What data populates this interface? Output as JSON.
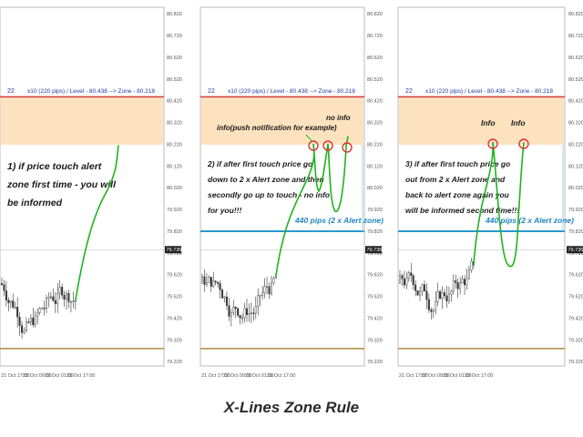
{
  "caption": "X-Lines Zone Rule",
  "colors": {
    "zone_fill": "#fde2c0",
    "level_line": "#d63a3a",
    "alert_line": "#2a98d0",
    "bottom_line": "#b08a3a",
    "annotation_green": "#1db51d",
    "annotation_text": "#1a1a1a",
    "alert_text": "#1f86c4",
    "header_text": "#2040a0",
    "circle_red": "#e23030",
    "candle": "#333333",
    "axis_text": "#555555"
  },
  "price_axis_labels": [
    "80.820",
    "80.720",
    "80.620",
    "80.520",
    "80.420",
    "80.320",
    "80.220",
    "80.120",
    "80.020",
    "79.920",
    "79.820",
    "79.720",
    "79.620",
    "79.520",
    "79.420",
    "79.320",
    "79.220"
  ],
  "current_price_tag": "79.735",
  "time_axis_labels": [
    "21 Oct 17:00",
    "22 Oct 09:00",
    "23 Oct 01:00",
    "23 Oct 17:00"
  ],
  "header": {
    "number": "22",
    "text": "x10 (220 pips) / Level - 80.438 --> Zone - 80.218"
  },
  "panels": [
    {
      "note_lines": [
        "1) if price touch alert",
        "zone first time - you will",
        "be informed"
      ],
      "labels": []
    },
    {
      "note_lines": [
        "2) if after first touch price go",
        "down to 2 x Alert zone and then",
        "secondly go up to touch - no info",
        "for you!!!"
      ],
      "alert_label": "440 pips (2 x Alert zone)",
      "labels": [
        "info(push notification for example)",
        "no info"
      ]
    },
    {
      "note_lines": [
        "3) if after first touch price go",
        "out from 2 x Alert zone and",
        "back to alert zone again you",
        "will be informed second time!!!"
      ],
      "alert_label": "440 pips (2 x Alert zone)",
      "labels": [
        "Info",
        "Info"
      ]
    }
  ],
  "chart_data": {
    "type": "line",
    "title": "X-Lines Zone Rule",
    "level_price": 80.438,
    "zone_price": 80.218,
    "zone_pips": 220,
    "alert_zone_pips": 440,
    "ylim": [
      79.2,
      80.85
    ],
    "y_ticks": [
      80.82,
      80.72,
      80.62,
      80.52,
      80.42,
      80.32,
      80.22,
      80.12,
      80.02,
      79.92,
      79.82,
      79.72,
      79.62,
      79.52,
      79.42,
      79.32,
      79.22
    ],
    "current_price": 79.735
  }
}
